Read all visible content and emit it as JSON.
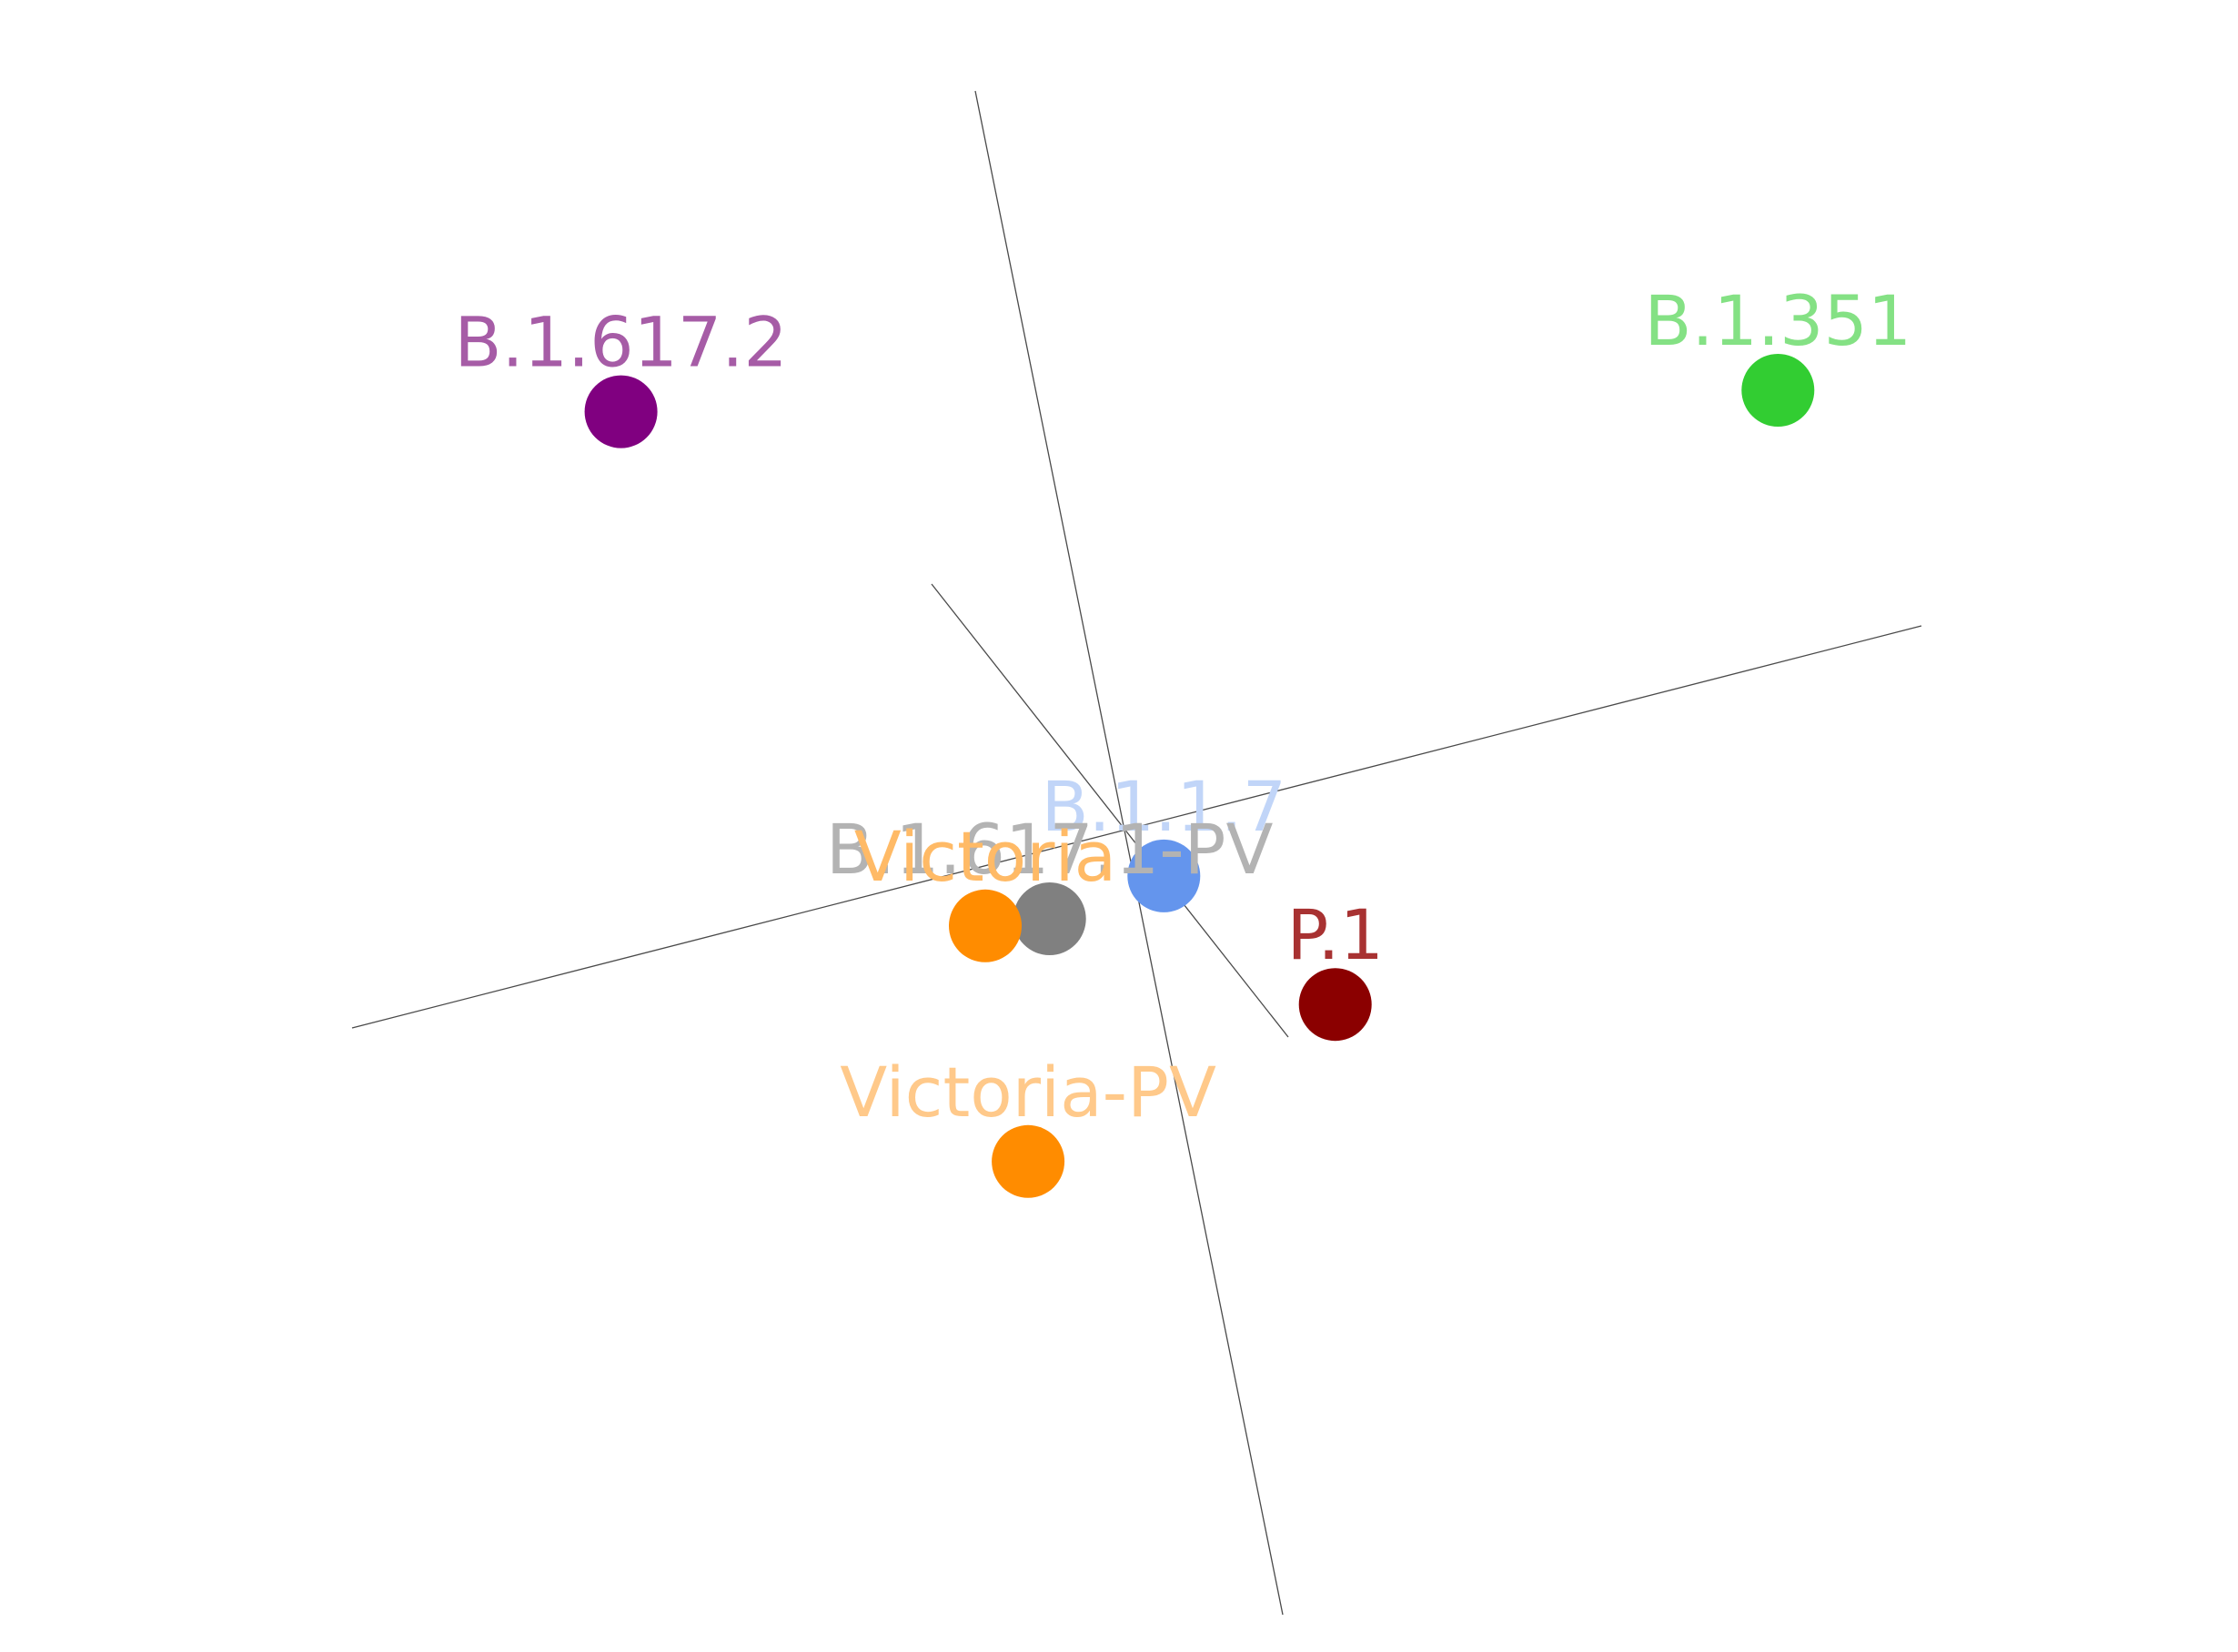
{
  "chart_data": {
    "type": "scatter",
    "title": "",
    "xlabel": "",
    "ylabel": "",
    "grid": false,
    "legend": "none",
    "axes_drawn": 3,
    "points": [
      {
        "label": "B.1.617.2",
        "x": -3.55,
        "y": 3.2,
        "color": "#800080",
        "label_color": "#a65ca6"
      },
      {
        "label": "B.1.351",
        "x": 4.55,
        "y": 3.35,
        "color": "#32cd32",
        "label_color": "#84e184"
      },
      {
        "label": "B.1.1.7",
        "x": 0.25,
        "y": -0.05,
        "color": "#6495ed",
        "label_color": "#c1d5f8"
      },
      {
        "label": "B.1.617.1-PV",
        "x": -0.55,
        "y": -0.35,
        "color": "#808080",
        "label_color": "#b3b3b3"
      },
      {
        "label": "Victoria",
        "x": -1.0,
        "y": -0.4,
        "color": "#ff8c00",
        "label_color": "#ffba66"
      },
      {
        "label": "P.1",
        "x": 1.45,
        "y": -0.95,
        "color": "#8b0000",
        "label_color": "#a83232"
      },
      {
        "label": "Victoria-PV",
        "x": -0.7,
        "y": -2.05,
        "color": "#ff8c00",
        "label_color": "#ffc98a"
      }
    ]
  }
}
